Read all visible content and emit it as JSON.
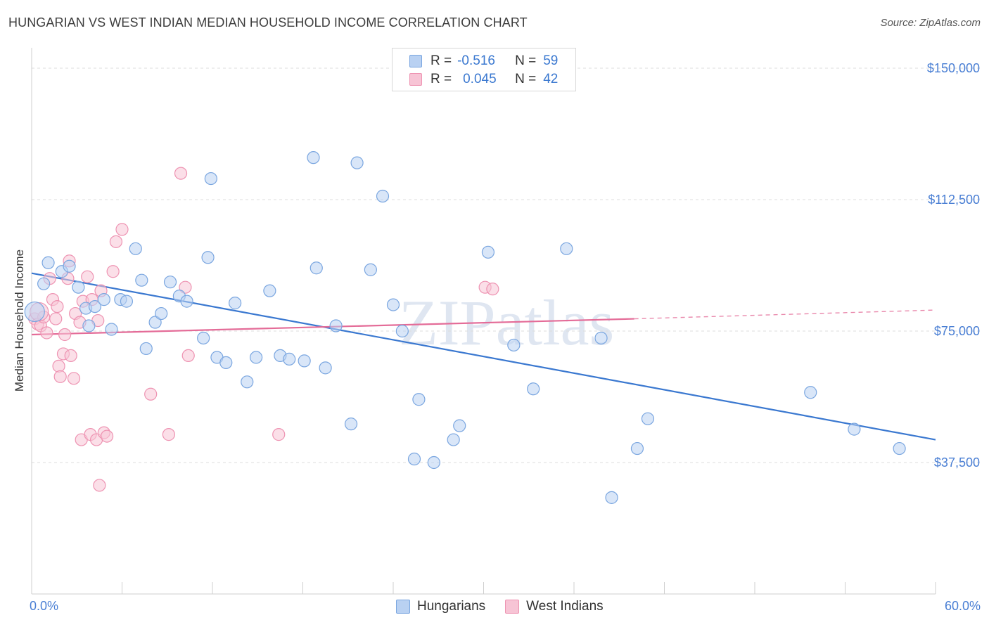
{
  "title": "HUNGARIAN VS WEST INDIAN MEDIAN HOUSEHOLD INCOME CORRELATION CHART",
  "source": "Source: ZipAtlas.com",
  "watermark": "ZIPatlas",
  "colors": {
    "blue_fill": "#b9d1f2",
    "blue_stroke": "#7aa6e0",
    "blue_line": "#3a78d0",
    "pink_fill": "#f7c4d5",
    "pink_stroke": "#ee93b2",
    "pink_line": "#e46c98",
    "axis_text": "#4a7fd4"
  },
  "legend_top": [
    {
      "r_label": "R =",
      "r_value": "-0.516",
      "n_label": "N =",
      "n_value": "59"
    },
    {
      "r_label": "R =",
      "r_value": "0.045",
      "n_label": "N =",
      "n_value": "42"
    }
  ],
  "chart_data": {
    "type": "scatter",
    "title": "HUNGARIAN VS WEST INDIAN MEDIAN HOUSEHOLD INCOME CORRELATION CHART",
    "xlabel": "",
    "ylabel": "Median Household Income",
    "xlim": [
      0,
      60
    ],
    "ylim": [
      0,
      150000
    ],
    "x_tick_labels": [
      "0.0%",
      "60.0%"
    ],
    "y_ticks": [
      37500,
      75000,
      112500,
      150000
    ],
    "y_tick_labels": [
      "$37,500",
      "$75,000",
      "$112,500",
      "$150,000"
    ],
    "grid": true,
    "legend_position": "bottom",
    "series": [
      {
        "name": "Hungarians",
        "trend": {
          "x": [
            0,
            60
          ],
          "y": [
            91500,
            44000
          ]
        },
        "points": [
          [
            0.2,
            80500
          ],
          [
            1.1,
            94500
          ],
          [
            2.0,
            92000
          ],
          [
            2.5,
            93500
          ],
          [
            3.1,
            87500
          ],
          [
            3.6,
            81500
          ],
          [
            3.8,
            76500
          ],
          [
            4.2,
            82000
          ],
          [
            4.8,
            84000
          ],
          [
            5.3,
            75500
          ],
          [
            5.9,
            84000
          ],
          [
            6.3,
            83500
          ],
          [
            6.9,
            98500
          ],
          [
            7.3,
            89500
          ],
          [
            7.6,
            70000
          ],
          [
            8.2,
            77500
          ],
          [
            8.6,
            80000
          ],
          [
            9.2,
            89000
          ],
          [
            9.8,
            85000
          ],
          [
            10.3,
            83500
          ],
          [
            11.4,
            73000
          ],
          [
            11.7,
            96000
          ],
          [
            11.9,
            118500
          ],
          [
            12.3,
            67500
          ],
          [
            12.9,
            66000
          ],
          [
            13.5,
            83000
          ],
          [
            14.3,
            60500
          ],
          [
            14.9,
            67500
          ],
          [
            15.8,
            86500
          ],
          [
            16.5,
            68000
          ],
          [
            17.1,
            67000
          ],
          [
            18.1,
            66500
          ],
          [
            18.7,
            124500
          ],
          [
            18.9,
            93000
          ],
          [
            19.5,
            64500
          ],
          [
            20.2,
            76500
          ],
          [
            21.2,
            48500
          ],
          [
            21.6,
            123000
          ],
          [
            22.5,
            92500
          ],
          [
            23.3,
            113500
          ],
          [
            24.0,
            82500
          ],
          [
            24.6,
            75000
          ],
          [
            25.4,
            38500
          ],
          [
            25.7,
            55500
          ],
          [
            26.7,
            37500
          ],
          [
            28.0,
            44000
          ],
          [
            28.4,
            48000
          ],
          [
            30.3,
            97500
          ],
          [
            32.0,
            71000
          ],
          [
            33.3,
            58500
          ],
          [
            35.5,
            98500
          ],
          [
            37.8,
            73000
          ],
          [
            38.5,
            27500
          ],
          [
            40.2,
            41500
          ],
          [
            40.9,
            50000
          ],
          [
            51.7,
            57500
          ],
          [
            54.6,
            47000
          ],
          [
            57.6,
            41500
          ],
          [
            0.8,
            88500
          ]
        ]
      },
      {
        "name": "West Indians",
        "trend": {
          "x": [
            0,
            40
          ],
          "y": [
            74000,
            78500
          ]
        },
        "trend_dashed": {
          "x": [
            40,
            60
          ],
          "y": [
            78500,
            81000
          ]
        },
        "points": [
          [
            0.2,
            78500
          ],
          [
            0.4,
            77000
          ],
          [
            0.6,
            76500
          ],
          [
            0.8,
            79000
          ],
          [
            1.0,
            74500
          ],
          [
            1.2,
            90000
          ],
          [
            1.4,
            84000
          ],
          [
            1.6,
            78500
          ],
          [
            1.7,
            82000
          ],
          [
            1.8,
            65000
          ],
          [
            1.9,
            62000
          ],
          [
            2.1,
            68500
          ],
          [
            2.2,
            74000
          ],
          [
            2.4,
            90000
          ],
          [
            2.5,
            95000
          ],
          [
            2.6,
            68000
          ],
          [
            2.8,
            61500
          ],
          [
            2.9,
            80000
          ],
          [
            3.2,
            77500
          ],
          [
            3.3,
            44000
          ],
          [
            3.4,
            83500
          ],
          [
            3.7,
            90500
          ],
          [
            3.9,
            45500
          ],
          [
            4.0,
            84000
          ],
          [
            4.3,
            44000
          ],
          [
            4.4,
            78000
          ],
          [
            4.5,
            31000
          ],
          [
            4.6,
            86500
          ],
          [
            4.8,
            46000
          ],
          [
            5.0,
            45000
          ],
          [
            5.4,
            92000
          ],
          [
            5.6,
            100500
          ],
          [
            6.0,
            104000
          ],
          [
            7.9,
            57000
          ],
          [
            9.1,
            45500
          ],
          [
            9.9,
            120000
          ],
          [
            10.2,
            87500
          ],
          [
            10.4,
            68000
          ],
          [
            16.4,
            45500
          ],
          [
            30.1,
            87500
          ],
          [
            30.6,
            87000
          ],
          [
            0.5,
            80500
          ]
        ]
      }
    ]
  }
}
